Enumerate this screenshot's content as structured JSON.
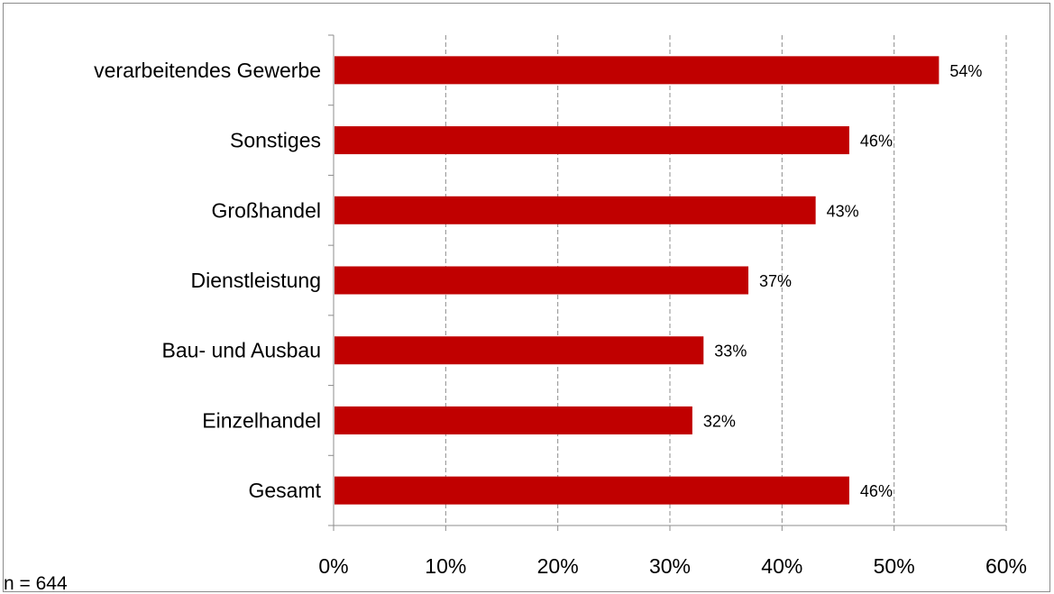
{
  "chart_data": {
    "type": "bar",
    "orientation": "horizontal",
    "categories": [
      "verarbeitendes Gewerbe",
      "Sonstiges",
      "Großhandel",
      "Dienstleistung",
      "Bau- und Ausbau",
      "Einzelhandel",
      "Gesamt"
    ],
    "values": [
      54,
      46,
      43,
      37,
      33,
      32,
      46
    ],
    "data_labels": [
      "54%",
      "46%",
      "43%",
      "37%",
      "33%",
      "32%",
      "46%"
    ],
    "xlim": [
      0,
      60
    ],
    "xticks": [
      0,
      10,
      20,
      30,
      40,
      50,
      60
    ],
    "xtick_labels": [
      "0%",
      "10%",
      "20%",
      "30%",
      "40%",
      "50%",
      "60%"
    ],
    "grid": "vertical dashed",
    "bar_color": "#c00000",
    "note": "n = 644"
  }
}
